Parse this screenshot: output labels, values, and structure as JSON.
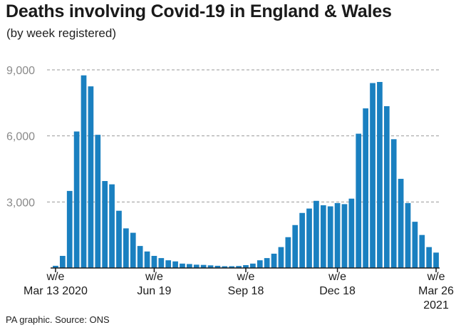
{
  "header": {
    "title": "Deaths involving Covid-19 in England & Wales",
    "subtitle": "(by week registered)"
  },
  "footer": {
    "source": "PA graphic. Source: ONS"
  },
  "colors": {
    "bar": "#1a80c0",
    "grid": "#9a9a9a",
    "axis": "#1a1a1a"
  },
  "chart_data": {
    "type": "bar",
    "title": "Deaths involving Covid-19 in England & Wales",
    "subtitle": "(by week registered)",
    "xlabel": "",
    "ylabel": "",
    "ylim": [
      0,
      9000
    ],
    "grid": true,
    "yticks": [
      {
        "value": 3000,
        "label": "3,000"
      },
      {
        "value": 6000,
        "label": "6,000"
      },
      {
        "value": 9000,
        "label": "9,000"
      }
    ],
    "xticks": [
      {
        "index": 0,
        "lines": [
          "w/e",
          "Mar 13 2020"
        ]
      },
      {
        "index": 14,
        "lines": [
          "w/e",
          "Jun 19"
        ]
      },
      {
        "index": 27,
        "lines": [
          "w/e",
          "Sep 18"
        ]
      },
      {
        "index": 40,
        "lines": [
          "w/e",
          "Dec 18"
        ]
      },
      {
        "index": 54,
        "lines": [
          "w/e",
          "Mar 26",
          "2021"
        ]
      }
    ],
    "categories": [
      "2020-03-13",
      "2020-03-20",
      "2020-03-27",
      "2020-04-03",
      "2020-04-10",
      "2020-04-17",
      "2020-04-24",
      "2020-05-01",
      "2020-05-08",
      "2020-05-15",
      "2020-05-22",
      "2020-05-29",
      "2020-06-05",
      "2020-06-12",
      "2020-06-19",
      "2020-06-26",
      "2020-07-03",
      "2020-07-10",
      "2020-07-17",
      "2020-07-24",
      "2020-07-31",
      "2020-08-07",
      "2020-08-14",
      "2020-08-21",
      "2020-08-28",
      "2020-09-04",
      "2020-09-11",
      "2020-09-18",
      "2020-09-25",
      "2020-10-02",
      "2020-10-09",
      "2020-10-16",
      "2020-10-23",
      "2020-10-30",
      "2020-11-06",
      "2020-11-13",
      "2020-11-20",
      "2020-11-27",
      "2020-12-04",
      "2020-12-11",
      "2020-12-18",
      "2020-12-25",
      "2021-01-01",
      "2021-01-08",
      "2021-01-15",
      "2021-01-22",
      "2021-01-29",
      "2021-02-05",
      "2021-02-12",
      "2021-02-19",
      "2021-02-26",
      "2021-03-05",
      "2021-03-12",
      "2021-03-19",
      "2021-03-26"
    ],
    "values": [
      100,
      550,
      3500,
      6200,
      8750,
      8250,
      6050,
      3950,
      3800,
      2600,
      1800,
      1600,
      1000,
      750,
      550,
      450,
      350,
      300,
      200,
      180,
      150,
      140,
      120,
      100,
      80,
      80,
      90,
      130,
      200,
      350,
      450,
      650,
      950,
      1400,
      1950,
      2500,
      2700,
      3050,
      2850,
      2800,
      2950,
      2900,
      3150,
      6100,
      7250,
      8400,
      8450,
      7350,
      5850,
      4050,
      2950,
      2100,
      1500,
      950,
      700
    ]
  }
}
